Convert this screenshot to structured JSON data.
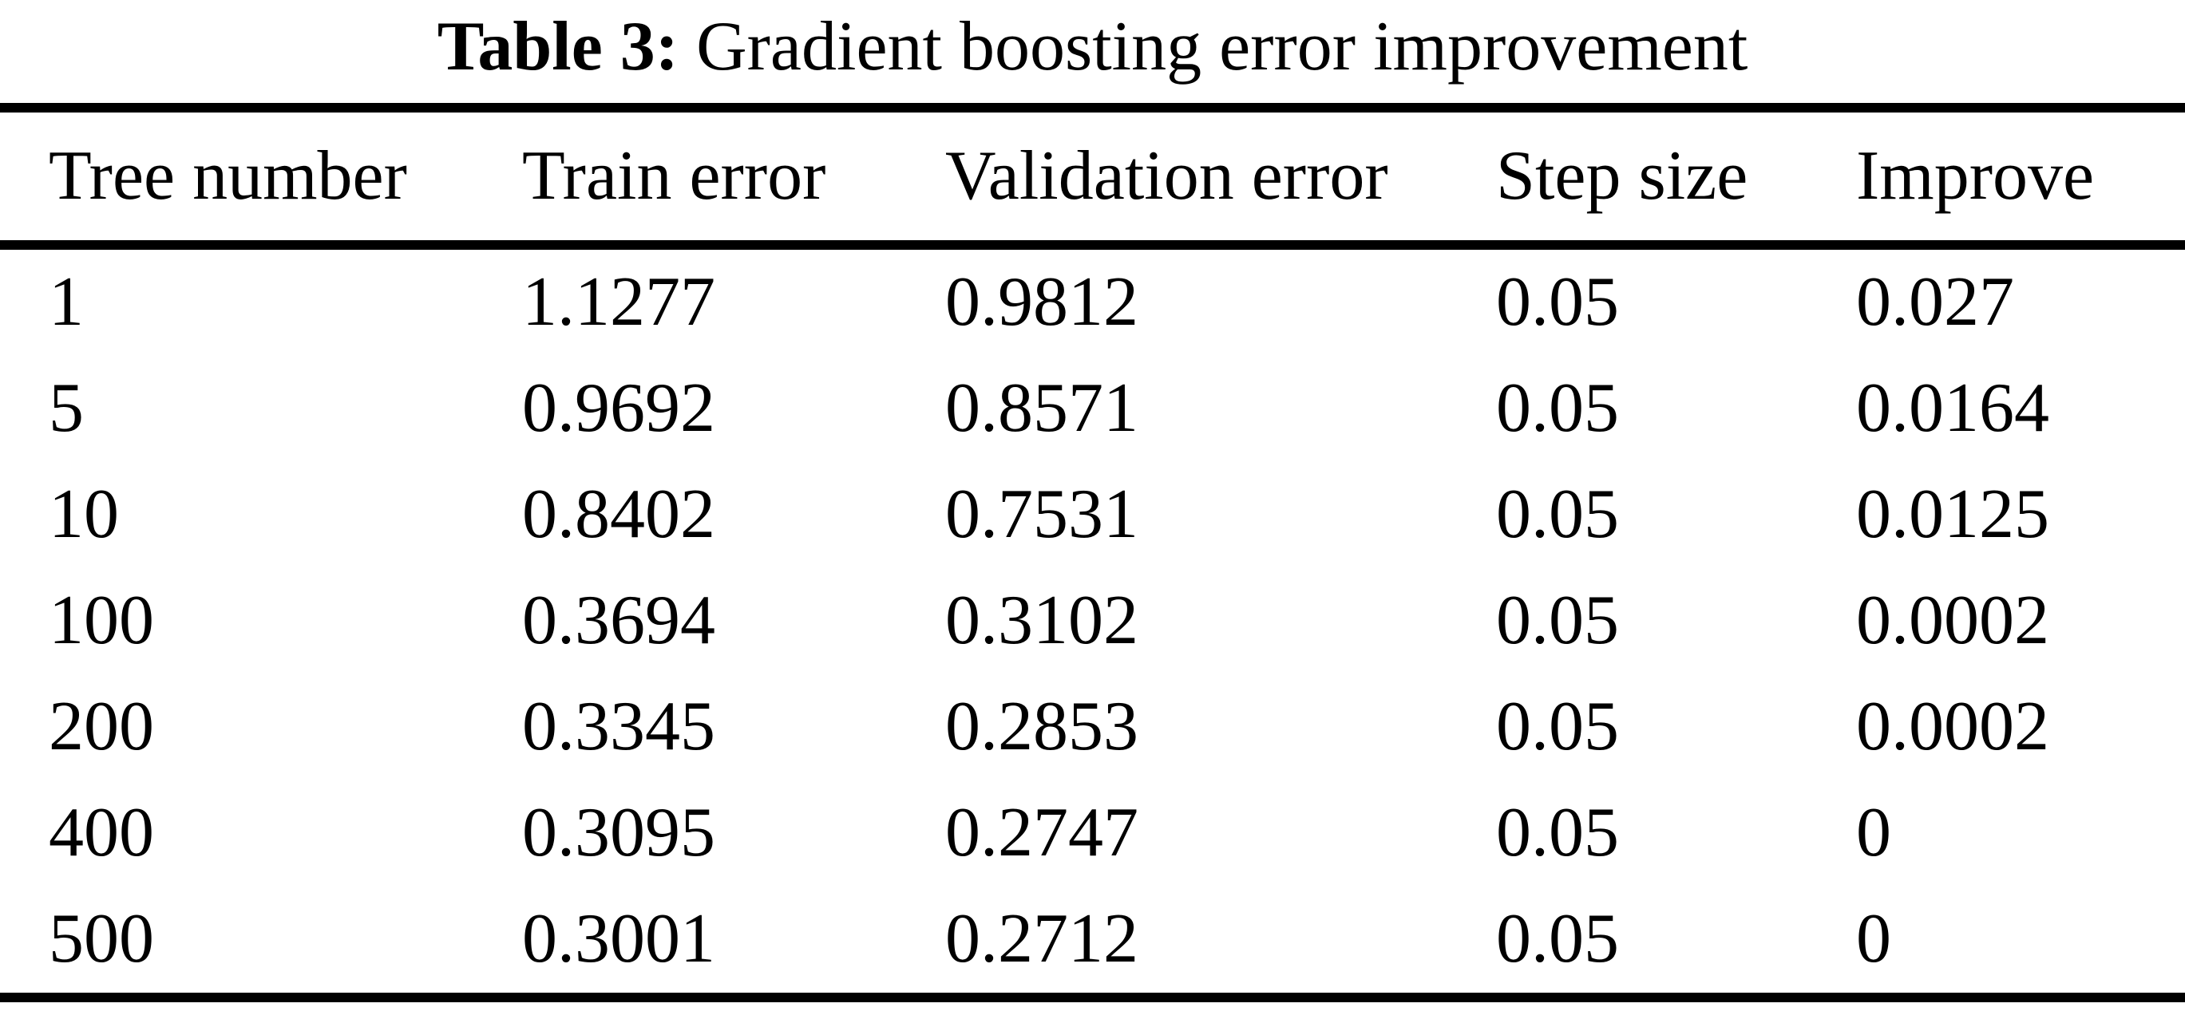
{
  "table": {
    "caption": {
      "label": "Table 3:",
      "text": "Gradient boosting error improvement"
    },
    "columns": [
      "Tree number",
      "Train error",
      "Validation error",
      "Step size",
      "Improve"
    ],
    "rows": [
      [
        "1",
        "1.1277",
        "0.9812",
        "0.05",
        "0.027"
      ],
      [
        "5",
        "0.9692",
        "0.8571",
        "0.05",
        "0.0164"
      ],
      [
        "10",
        "0.8402",
        "0.7531",
        "0.05",
        "0.0125"
      ],
      [
        "100",
        "0.3694",
        "0.3102",
        "0.05",
        "0.0002"
      ],
      [
        "200",
        "0.3345",
        "0.2853",
        "0.05",
        "0.0002"
      ],
      [
        "400",
        "0.3095",
        "0.2747",
        "0.05",
        "0"
      ],
      [
        "500",
        "0.3001",
        "0.2712",
        "0.05",
        "0"
      ]
    ]
  },
  "chart_data": {
    "type": "table",
    "title": "Table 3: Gradient boosting error improvement",
    "columns": [
      "Tree number",
      "Train error",
      "Validation error",
      "Step size",
      "Improve"
    ],
    "tree_number": [
      1,
      5,
      10,
      100,
      200,
      400,
      500
    ],
    "train_error": [
      1.1277,
      0.9692,
      0.8402,
      0.3694,
      0.3345,
      0.3095,
      0.3001
    ],
    "validation_error": [
      0.9812,
      0.8571,
      0.7531,
      0.3102,
      0.2853,
      0.2747,
      0.2712
    ],
    "step_size": [
      0.05,
      0.05,
      0.05,
      0.05,
      0.05,
      0.05,
      0.05
    ],
    "improve": [
      0.027,
      0.0164,
      0.0125,
      0.0002,
      0.0002,
      0,
      0
    ]
  },
  "colors": {
    "text": "#000000",
    "background": "#ffffff",
    "rule": "#000000"
  }
}
